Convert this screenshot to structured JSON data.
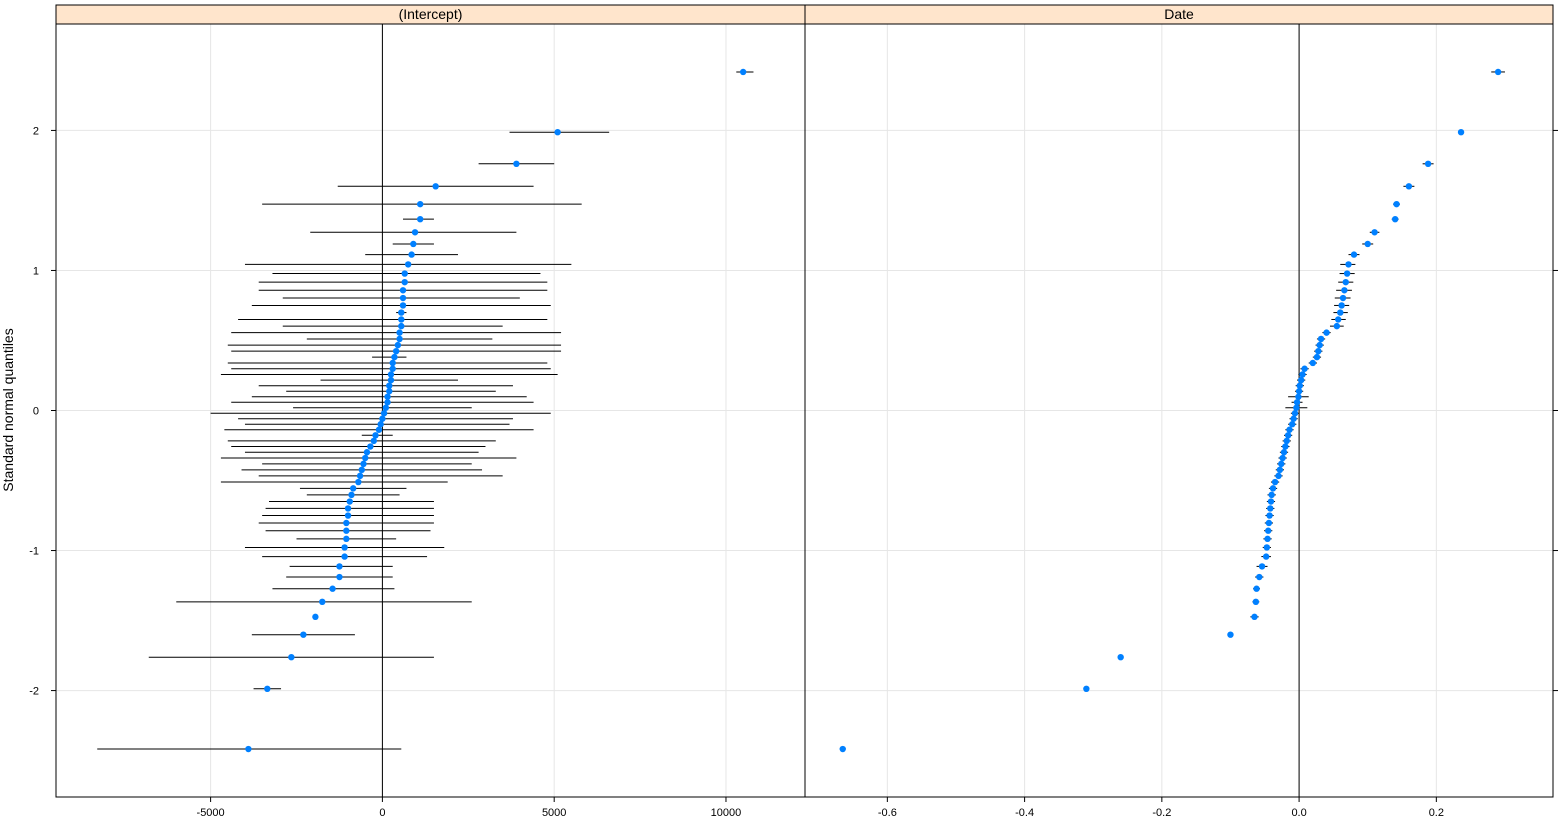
{
  "chart_data": {
    "type": "scatter",
    "title": "",
    "ylabel": "Standard normal quantiles",
    "y_ticks": [
      -2,
      -1,
      0,
      1,
      2
    ],
    "y_tick_labels": [
      "-2",
      "-1",
      "0",
      "1",
      "2"
    ],
    "ylim": [
      -2.76,
      2.76
    ],
    "grid": true,
    "colors": {
      "point": "#0080ff",
      "strip": "#ffe5cc",
      "grid": "#e6e6e6",
      "ref_line": "#000000",
      "error_bar": "#000000"
    },
    "panels": [
      {
        "strip": "(Intercept)",
        "xlim": [
          -9500,
          12300
        ],
        "x_ticks": [
          -5000,
          0,
          5000,
          10000
        ],
        "x_tick_labels": [
          "-5000",
          "0",
          "5000",
          "10000"
        ],
        "reference_x": 0,
        "points": [
          {
            "x": -3900,
            "lo": -8300,
            "hi": 550
          },
          {
            "x": -3350,
            "lo": -3750,
            "hi": -2950
          },
          {
            "x": -2650,
            "lo": -6800,
            "hi": 1500
          },
          {
            "x": -2300,
            "lo": -3800,
            "hi": -800
          },
          {
            "x": -1950,
            "lo": -1950,
            "hi": -1950
          },
          {
            "x": -1750,
            "lo": -6000,
            "hi": 2600
          },
          {
            "x": -1450,
            "lo": -3200,
            "hi": 350
          },
          {
            "x": -1250,
            "lo": -2800,
            "hi": 300
          },
          {
            "x": -1250,
            "lo": -2700,
            "hi": 300
          },
          {
            "x": -1100,
            "lo": -3500,
            "hi": 1300
          },
          {
            "x": -1100,
            "lo": -4000,
            "hi": 1800
          },
          {
            "x": -1050,
            "lo": -2500,
            "hi": 400
          },
          {
            "x": -1050,
            "lo": -3400,
            "hi": 1400
          },
          {
            "x": -1050,
            "lo": -3600,
            "hi": 1500
          },
          {
            "x": -1000,
            "lo": -3500,
            "hi": 1500
          },
          {
            "x": -1000,
            "lo": -3400,
            "hi": 1500
          },
          {
            "x": -950,
            "lo": -3300,
            "hi": 1500
          },
          {
            "x": -900,
            "lo": -2200,
            "hi": 500
          },
          {
            "x": -850,
            "lo": -2400,
            "hi": 700
          },
          {
            "x": -700,
            "lo": -4700,
            "hi": 1900
          },
          {
            "x": -650,
            "lo": -3600,
            "hi": 3500
          },
          {
            "x": -600,
            "lo": -4100,
            "hi": 2900
          },
          {
            "x": -550,
            "lo": -3500,
            "hi": 2600
          },
          {
            "x": -500,
            "lo": -4700,
            "hi": 3900
          },
          {
            "x": -450,
            "lo": -4000,
            "hi": 2800
          },
          {
            "x": -350,
            "lo": -4400,
            "hi": 3000
          },
          {
            "x": -250,
            "lo": -4500,
            "hi": 3300
          },
          {
            "x": -200,
            "lo": -600,
            "hi": 300
          },
          {
            "x": -100,
            "lo": -4600,
            "hi": 4400
          },
          {
            "x": -50,
            "lo": -4000,
            "hi": 3700
          },
          {
            "x": 0,
            "lo": -4200,
            "hi": 3800
          },
          {
            "x": 50,
            "lo": -5000,
            "hi": 4900
          },
          {
            "x": 100,
            "lo": -2600,
            "hi": 2600
          },
          {
            "x": 150,
            "lo": -4400,
            "hi": 4400
          },
          {
            "x": 150,
            "lo": -3800,
            "hi": 4200
          },
          {
            "x": 200,
            "lo": -2800,
            "hi": 3300
          },
          {
            "x": 200,
            "lo": -3600,
            "hi": 3800
          },
          {
            "x": 250,
            "lo": -1800,
            "hi": 2200
          },
          {
            "x": 250,
            "lo": -4700,
            "hi": 5100
          },
          {
            "x": 300,
            "lo": -4400,
            "hi": 4900
          },
          {
            "x": 300,
            "lo": -4500,
            "hi": 4800
          },
          {
            "x": 350,
            "lo": -300,
            "hi": 700
          },
          {
            "x": 400,
            "lo": -4400,
            "hi": 5200
          },
          {
            "x": 450,
            "lo": -4500,
            "hi": 5200
          },
          {
            "x": 500,
            "lo": -2200,
            "hi": 3200
          },
          {
            "x": 500,
            "lo": -4400,
            "hi": 5200
          },
          {
            "x": 550,
            "lo": -2900,
            "hi": 3500
          },
          {
            "x": 550,
            "lo": -4200,
            "hi": 4800
          },
          {
            "x": 600,
            "lo": -3800,
            "hi": 4900
          },
          {
            "x": 600,
            "lo": -2900,
            "hi": 4000
          },
          {
            "x": 550,
            "lo": 400,
            "hi": 700
          },
          {
            "x": 600,
            "lo": -3600,
            "hi": 4800
          },
          {
            "x": 650,
            "lo": -3600,
            "hi": 4800
          },
          {
            "x": 650,
            "lo": -3200,
            "hi": 4600
          },
          {
            "x": 750,
            "lo": -4000,
            "hi": 5500
          },
          {
            "x": 850,
            "lo": -500,
            "hi": 2200
          },
          {
            "x": 900,
            "lo": 300,
            "hi": 1500
          },
          {
            "x": 950,
            "lo": -2100,
            "hi": 3900
          },
          {
            "x": 1100,
            "lo": 600,
            "hi": 1500
          },
          {
            "x": 1100,
            "lo": -3500,
            "hi": 5800
          },
          {
            "x": 1550,
            "lo": -1300,
            "hi": 4400
          },
          {
            "x": 3900,
            "lo": 2800,
            "hi": 5000
          },
          {
            "x": 5100,
            "lo": 3700,
            "hi": 6600
          },
          {
            "x": 10500,
            "lo": 10300,
            "hi": 10800
          }
        ]
      },
      {
        "strip": "Date",
        "xlim": [
          -0.72,
          0.37
        ],
        "x_ticks": [
          -0.6,
          -0.4,
          -0.2,
          0.0,
          0.2
        ],
        "x_tick_labels": [
          "-0.6",
          "-0.4",
          "-0.2",
          "0.0",
          "0.2"
        ],
        "reference_x": 0,
        "points": [
          {
            "x": -0.665,
            "lo": -0.665,
            "hi": -0.665
          },
          {
            "x": -0.31,
            "lo": -0.31,
            "hi": -0.31
          },
          {
            "x": -0.26,
            "lo": -0.26,
            "hi": -0.26
          },
          {
            "x": -0.1,
            "lo": -0.1,
            "hi": -0.1
          },
          {
            "x": -0.065,
            "lo": -0.071,
            "hi": -0.059
          },
          {
            "x": -0.063,
            "lo": -0.068,
            "hi": -0.058
          },
          {
            "x": -0.062,
            "lo": -0.067,
            "hi": -0.057
          },
          {
            "x": -0.058,
            "lo": -0.064,
            "hi": -0.052
          },
          {
            "x": -0.054,
            "lo": -0.062,
            "hi": -0.046
          },
          {
            "x": -0.048,
            "lo": -0.055,
            "hi": -0.041
          },
          {
            "x": -0.047,
            "lo": -0.053,
            "hi": -0.041
          },
          {
            "x": -0.046,
            "lo": -0.052,
            "hi": -0.04
          },
          {
            "x": -0.045,
            "lo": -0.051,
            "hi": -0.039
          },
          {
            "x": -0.044,
            "lo": -0.05,
            "hi": -0.038
          },
          {
            "x": -0.043,
            "lo": -0.049,
            "hi": -0.037
          },
          {
            "x": -0.042,
            "lo": -0.048,
            "hi": -0.036
          },
          {
            "x": -0.041,
            "lo": -0.047,
            "hi": -0.035
          },
          {
            "x": -0.04,
            "lo": -0.046,
            "hi": -0.034
          },
          {
            "x": -0.038,
            "lo": -0.044,
            "hi": -0.032
          },
          {
            "x": -0.035,
            "lo": -0.041,
            "hi": -0.029
          },
          {
            "x": -0.03,
            "lo": -0.036,
            "hi": -0.024
          },
          {
            "x": -0.028,
            "lo": -0.034,
            "hi": -0.022
          },
          {
            "x": -0.026,
            "lo": -0.032,
            "hi": -0.02
          },
          {
            "x": -0.024,
            "lo": -0.03,
            "hi": -0.018
          },
          {
            "x": -0.022,
            "lo": -0.028,
            "hi": -0.016
          },
          {
            "x": -0.02,
            "lo": -0.026,
            "hi": -0.014
          },
          {
            "x": -0.018,
            "lo": -0.024,
            "hi": -0.012
          },
          {
            "x": -0.016,
            "lo": -0.022,
            "hi": -0.01
          },
          {
            "x": -0.014,
            "lo": -0.02,
            "hi": -0.008
          },
          {
            "x": -0.01,
            "lo": -0.016,
            "hi": -0.004
          },
          {
            "x": -0.008,
            "lo": -0.014,
            "hi": -0.002
          },
          {
            "x": -0.006,
            "lo": -0.012,
            "hi": 0.0
          },
          {
            "x": -0.004,
            "lo": -0.02,
            "hi": 0.012
          },
          {
            "x": -0.003,
            "lo": -0.011,
            "hi": 0.005
          },
          {
            "x": -0.001,
            "lo": -0.016,
            "hi": 0.014
          },
          {
            "x": 0.0,
            "lo": -0.006,
            "hi": 0.006
          },
          {
            "x": 0.001,
            "lo": -0.005,
            "hi": 0.007
          },
          {
            "x": 0.003,
            "lo": -0.003,
            "hi": 0.009
          },
          {
            "x": 0.005,
            "lo": -0.001,
            "hi": 0.011
          },
          {
            "x": 0.008,
            "lo": 0.002,
            "hi": 0.014
          },
          {
            "x": 0.02,
            "lo": 0.014,
            "hi": 0.026
          },
          {
            "x": 0.026,
            "lo": 0.02,
            "hi": 0.032
          },
          {
            "x": 0.028,
            "lo": 0.022,
            "hi": 0.034
          },
          {
            "x": 0.03,
            "lo": 0.024,
            "hi": 0.036
          },
          {
            "x": 0.032,
            "lo": 0.026,
            "hi": 0.038
          },
          {
            "x": 0.04,
            "lo": 0.034,
            "hi": 0.046
          },
          {
            "x": 0.055,
            "lo": 0.045,
            "hi": 0.065
          },
          {
            "x": 0.057,
            "lo": 0.047,
            "hi": 0.068
          },
          {
            "x": 0.06,
            "lo": 0.05,
            "hi": 0.071
          },
          {
            "x": 0.062,
            "lo": 0.051,
            "hi": 0.073
          },
          {
            "x": 0.064,
            "lo": 0.052,
            "hi": 0.075
          },
          {
            "x": 0.066,
            "lo": 0.054,
            "hi": 0.077
          },
          {
            "x": 0.068,
            "lo": 0.057,
            "hi": 0.079
          },
          {
            "x": 0.07,
            "lo": 0.059,
            "hi": 0.081
          },
          {
            "x": 0.072,
            "lo": 0.06,
            "hi": 0.082
          },
          {
            "x": 0.08,
            "lo": 0.072,
            "hi": 0.088
          },
          {
            "x": 0.1,
            "lo": 0.092,
            "hi": 0.108
          },
          {
            "x": 0.11,
            "lo": 0.103,
            "hi": 0.117
          },
          {
            "x": 0.14,
            "lo": 0.135,
            "hi": 0.145
          },
          {
            "x": 0.142,
            "lo": 0.137,
            "hi": 0.147
          },
          {
            "x": 0.16,
            "lo": 0.152,
            "hi": 0.168
          },
          {
            "x": 0.188,
            "lo": 0.18,
            "hi": 0.196
          },
          {
            "x": 0.236,
            "lo": 0.232,
            "hi": 0.24
          },
          {
            "x": 0.29,
            "lo": 0.28,
            "hi": 0.3
          }
        ]
      }
    ]
  }
}
